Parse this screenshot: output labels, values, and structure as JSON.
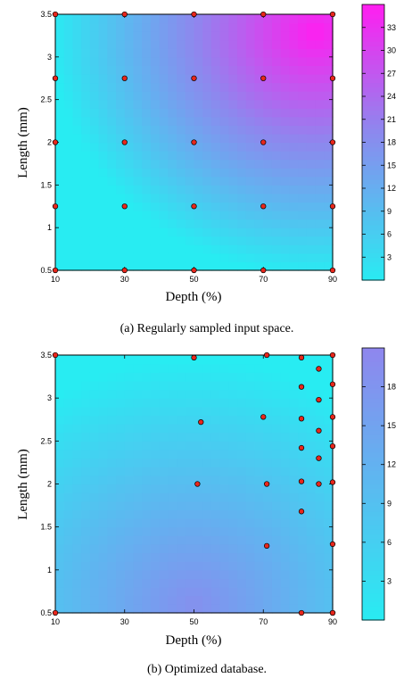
{
  "chart_data": [
    {
      "type": "heatmap",
      "caption": "(a) Regularly sampled input space.",
      "xlabel": "Depth (%)",
      "ylabel": "Length (mm)",
      "xlim": [
        10,
        90
      ],
      "ylim": [
        0.5,
        3.5
      ],
      "xticks": [
        10,
        30,
        50,
        70,
        90
      ],
      "yticks": [
        0.5,
        1,
        1.5,
        2,
        2.5,
        3,
        3.5
      ],
      "colorbar": {
        "min": 0,
        "max": 36,
        "ticks": [
          3,
          6,
          9,
          12,
          15,
          18,
          21,
          24,
          27,
          30,
          33
        ],
        "color_low": "#28ecf2",
        "color_mid": "#8f86ee",
        "color_high": "#ff1ef0"
      },
      "color_peak": [
        85,
        3.3
      ],
      "value_peak": 36,
      "samples": {
        "x": [
          10,
          30,
          50,
          70,
          90,
          10,
          30,
          50,
          70,
          90,
          10,
          30,
          50,
          70,
          90,
          10,
          30,
          50,
          70,
          90,
          10,
          30,
          50,
          70,
          90
        ],
        "y": [
          0.5,
          0.5,
          0.5,
          0.5,
          0.5,
          1.25,
          1.25,
          1.25,
          1.25,
          1.25,
          2,
          2,
          2,
          2,
          2,
          2.75,
          2.75,
          2.75,
          2.75,
          2.75,
          3.5,
          3.5,
          3.5,
          3.5,
          3.5
        ]
      },
      "marker_color": "#e8271c"
    },
    {
      "type": "heatmap",
      "caption": "(b) Optimized database.",
      "xlabel": "Depth (%)",
      "ylabel": "Length (mm)",
      "xlim": [
        10,
        90
      ],
      "ylim": [
        0.5,
        3.5
      ],
      "xticks": [
        10,
        30,
        50,
        70,
        90
      ],
      "yticks": [
        0.5,
        1,
        1.5,
        2,
        2.5,
        3,
        3.5
      ],
      "colorbar": {
        "min": 0,
        "max": 21,
        "ticks": [
          3,
          6,
          9,
          12,
          15,
          18
        ],
        "color_low": "#28ecf2",
        "color_high": "#8f86ee"
      },
      "color_peak": [
        50,
        0.6
      ],
      "value_peak": 19,
      "samples": {
        "x": [
          10,
          10,
          50,
          52,
          51,
          71,
          70,
          71,
          71,
          81,
          81,
          81,
          81,
          81,
          81,
          81,
          86,
          86,
          86,
          86,
          86,
          90,
          90,
          90,
          90,
          90,
          90,
          90,
          90
        ],
        "y": [
          0.5,
          3.5,
          3.47,
          2.72,
          2.0,
          3.5,
          2.78,
          2.0,
          1.28,
          3.47,
          3.13,
          2.76,
          2.42,
          2.03,
          1.68,
          0.5,
          3.34,
          2.98,
          2.62,
          2.3,
          2.0,
          3.5,
          3.16,
          2.78,
          2.44,
          2.02,
          1.3,
          0.5,
          0.5
        ]
      },
      "marker_color": "#e8271c"
    }
  ]
}
